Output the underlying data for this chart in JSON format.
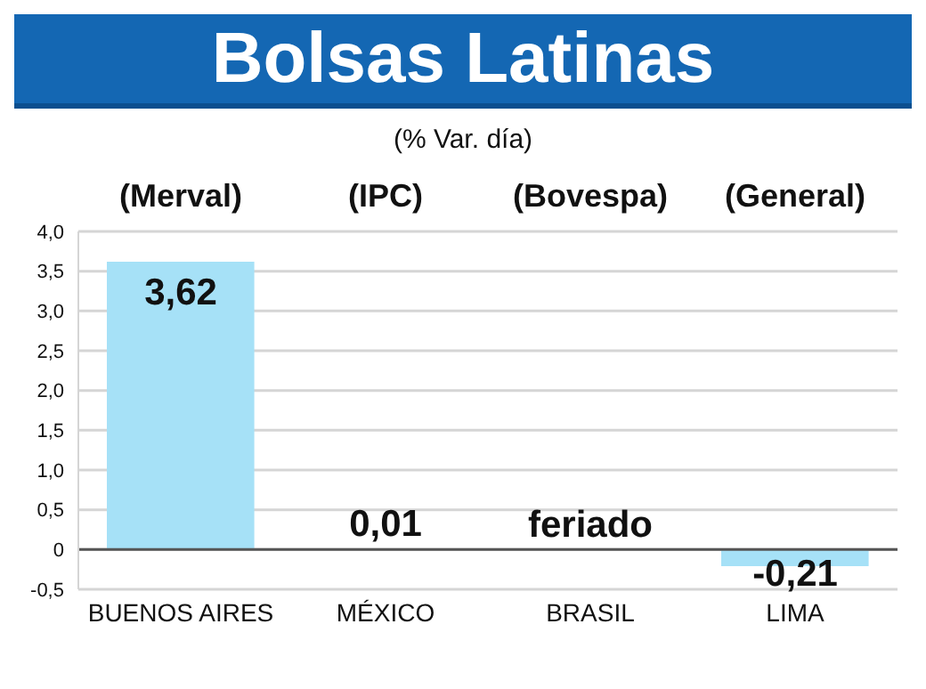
{
  "chart_data": {
    "type": "bar",
    "title": "Bolsas Latinas",
    "subtitle": "(% Var. día)",
    "categories": [
      "BUENOS AIRES",
      "MÉXICO",
      "BRASIL",
      "LIMA"
    ],
    "values": [
      3.62,
      0.01,
      null,
      -0.21
    ],
    "value_labels": [
      "3,62",
      "0,01",
      "feriado",
      "-0,21"
    ],
    "color": "#a6e1f7",
    "annotations": [
      "(Merval)",
      "(IPC)",
      "(Bovespa)",
      "(General)"
    ],
    "ylim": [
      -0.5,
      4.0
    ],
    "yticks": [
      {
        "value": -0.5,
        "label": "-0,5"
      },
      0,
      {
        "value": 0.5,
        "label": "0,5"
      },
      {
        "value": 1.0,
        "label": "1,0"
      },
      {
        "value": 1.5,
        "label": "1,5"
      },
      {
        "value": 2.0,
        "label": "2,0"
      },
      {
        "value": 2.5,
        "label": "2,5"
      },
      {
        "value": 3.0,
        "label": "3,0"
      },
      {
        "value": 3.5,
        "label": "3,5"
      },
      {
        "value": 4.0,
        "label": "4,0"
      }
    ],
    "grid": "y",
    "legend": false
  }
}
